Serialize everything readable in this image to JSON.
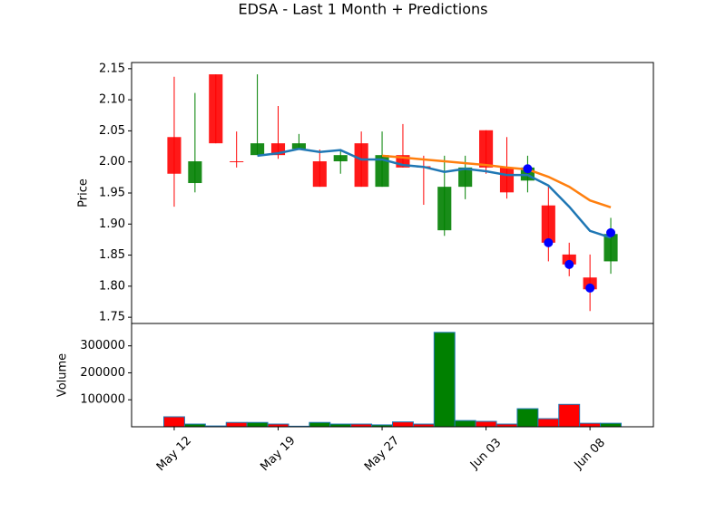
{
  "chart_data": [
    {
      "type": "candlestick",
      "title": "EDSA - Last 1 Month + Predictions",
      "ylabel": "Price",
      "categories": [
        "May 12",
        null,
        null,
        null,
        null,
        "May 19",
        null,
        null,
        null,
        null,
        "May 27",
        null,
        null,
        null,
        null,
        "Jun 03",
        null,
        null,
        null,
        null,
        "Jun 08",
        null
      ],
      "open": [
        2.04,
        1.966,
        2.141,
        2.001,
        2.011,
        2.03,
        2.021,
        2.001,
        2.001,
        2.03,
        1.96,
        2.011,
        1.993,
        1.89,
        1.96,
        2.051,
        1.991,
        1.97,
        1.93,
        1.851,
        1.814,
        1.84
      ],
      "high": [
        2.137,
        2.111,
        2.141,
        2.049,
        2.141,
        2.09,
        2.045,
        2.02,
        2.02,
        2.049,
        2.049,
        2.061,
        2.01,
        2.01,
        2.01,
        2.051,
        2.04,
        2.01,
        1.96,
        1.87,
        1.851,
        1.91
      ],
      "low": [
        1.928,
        1.951,
        2.03,
        1.991,
        2.011,
        2.005,
        2.021,
        1.96,
        1.981,
        1.96,
        1.96,
        1.991,
        1.931,
        1.881,
        1.94,
        1.981,
        1.941,
        1.951,
        1.84,
        1.816,
        1.76,
        1.82
      ],
      "close": [
        1.981,
        2.001,
        2.03,
        2.0,
        2.03,
        2.011,
        2.03,
        1.96,
        2.011,
        1.96,
        2.011,
        1.991,
        1.991,
        1.96,
        1.991,
        1.991,
        1.951,
        1.991,
        1.87,
        1.835,
        1.795,
        1.884
      ],
      "up_color": "#008000",
      "down_color": "#ff0000",
      "lines": [
        {
          "color": "#1f77b4",
          "values": [
            null,
            null,
            null,
            null,
            2.01,
            2.014,
            2.021,
            2.016,
            2.019,
            2.004,
            2.004,
            1.995,
            1.992,
            1.984,
            1.989,
            1.985,
            1.979,
            1.979,
            1.962,
            1.928,
            1.889,
            1.878
          ]
        },
        {
          "color": "#ff7f0e",
          "values": [
            null,
            null,
            null,
            null,
            null,
            null,
            null,
            null,
            null,
            null,
            2.01,
            2.007,
            2.004,
            2.001,
            1.998,
            1.995,
            1.991,
            1.988,
            1.976,
            1.96,
            1.938,
            1.927
          ]
        }
      ],
      "markers": {
        "color": "#0000ff",
        "values": [
          null,
          null,
          null,
          null,
          null,
          null,
          null,
          null,
          null,
          null,
          null,
          null,
          null,
          null,
          null,
          null,
          null,
          1.989,
          1.87,
          1.835,
          1.797,
          1.886
        ]
      },
      "xlim": [
        -2.05,
        23.05
      ],
      "ylim": [
        1.74,
        2.16
      ],
      "yticks": [
        1.75,
        {
          "value": 1.8,
          "label": "1.80"
        },
        1.85,
        {
          "value": 1.9,
          "label": "1.90"
        },
        1.95,
        {
          "value": 2.0,
          "label": "2.00"
        },
        2.05,
        {
          "value": 2.1,
          "label": "2.10"
        },
        2.15
      ]
    },
    {
      "type": "bar",
      "ylabel": "Volume",
      "values": [
        37000,
        10000,
        3000,
        16000,
        16000,
        10000,
        2000,
        16000,
        10000,
        10000,
        7000,
        18000,
        10000,
        350000,
        23000,
        20000,
        10000,
        67000,
        30000,
        83000,
        13000,
        13000
      ],
      "colors": [
        "#ff0000",
        "#008000",
        "#ff0000",
        "#ff0000",
        "#008000",
        "#ff0000",
        "#008000",
        "#008000",
        "#008000",
        "#ff0000",
        "#008000",
        "#ff0000",
        "#ff0000",
        "#008000",
        "#008000",
        "#ff0000",
        "#ff0000",
        "#008000",
        "#ff0000",
        "#ff0000",
        "#ff0000",
        "#008000"
      ],
      "ylim": [
        0,
        383000
      ],
      "yticks": [
        100000,
        200000,
        300000
      ]
    }
  ]
}
